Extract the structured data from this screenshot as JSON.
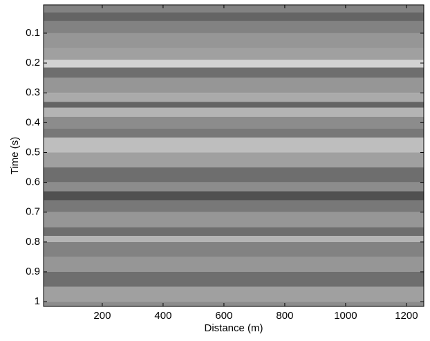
{
  "chart_data": {
    "type": "heatmap",
    "xlabel": "Distance (m)",
    "ylabel": "Time (s)",
    "colormap": "gray",
    "xlim": [
      7,
      1257
    ],
    "ylim": [
      0.005,
      1.016
    ],
    "y_reversed": true,
    "xticks": [
      200,
      400,
      600,
      800,
      1000,
      1200
    ],
    "yticks": [
      0.1,
      0.2,
      0.3,
      0.4,
      0.5,
      0.6,
      0.7,
      0.8,
      0.9,
      1
    ],
    "y_edges": [
      0.005,
      0.03,
      0.06,
      0.1,
      0.15,
      0.19,
      0.215,
      0.25,
      0.3,
      0.33,
      0.35,
      0.38,
      0.42,
      0.45,
      0.5,
      0.55,
      0.6,
      0.63,
      0.66,
      0.7,
      0.75,
      0.78,
      0.8,
      0.85,
      0.9,
      0.95,
      1.0,
      1.016
    ],
    "values": [
      130,
      100,
      130,
      150,
      160,
      210,
      110,
      150,
      170,
      100,
      180,
      140,
      120,
      190,
      160,
      110,
      140,
      80,
      120,
      150,
      110,
      180,
      130,
      150,
      110,
      160,
      140
    ]
  }
}
